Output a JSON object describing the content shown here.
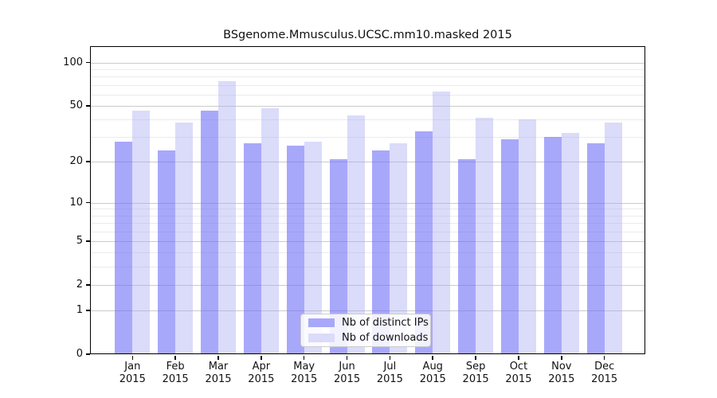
{
  "title": "BSgenome.Mmusculus.UCSC.mm10.masked 2015",
  "chart_data": {
    "type": "bar",
    "title": "BSgenome.Mmusculus.UCSC.mm10.masked 2015",
    "categories": [
      "Jan",
      "Feb",
      "Mar",
      "Apr",
      "May",
      "Jun",
      "Jul",
      "Aug",
      "Sep",
      "Oct",
      "Nov",
      "Dec"
    ],
    "category_year": "2015",
    "series": [
      {
        "name": "Nb of distinct IPs",
        "values": [
          28,
          24,
          46,
          27,
          26,
          21,
          24,
          33,
          21,
          29,
          30,
          27
        ]
      },
      {
        "name": "Nb of downloads",
        "values": [
          46,
          38,
          74,
          48,
          28,
          43,
          27,
          63,
          41,
          40,
          32,
          38
        ]
      }
    ],
    "xlabel": "",
    "ylabel": "",
    "y_scale": "log1p",
    "y_major_ticks": [
      100,
      50,
      20,
      10,
      5,
      2,
      1,
      0
    ],
    "y_minor_gridlines": [
      90,
      80,
      70,
      60,
      40,
      30,
      9,
      8,
      7,
      6,
      4,
      3
    ],
    "ylim": [
      0,
      115
    ],
    "grid": "on",
    "legend_position": "inside-bottom-center"
  },
  "colors": {
    "bar_ips": "#a8a8fa",
    "bar_downloads": "#dbdbfa",
    "bar_ips_rgba": "rgba(110,110,247,0.6)",
    "bar_downloads_rgba": "rgba(165,165,243,0.4)",
    "grid_major": "#cbcbcb",
    "grid_minor": "#ebebeb",
    "axis": "#000000"
  }
}
